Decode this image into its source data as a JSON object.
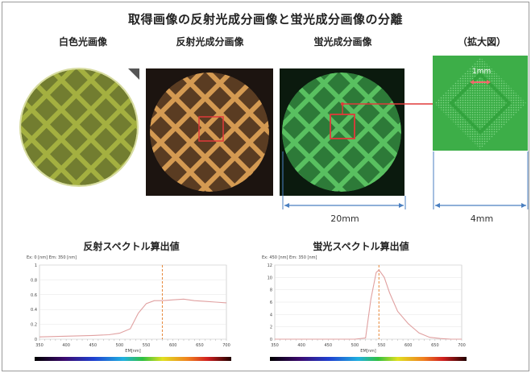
{
  "title": "取得画像の反射光成分画像と蛍光成分画像の分離",
  "panels": [
    {
      "label": "白色光画像"
    },
    {
      "label": "反射光成分画像"
    },
    {
      "label": "蛍光成分画像"
    },
    {
      "label": "（拡大図）"
    }
  ],
  "scale": {
    "width_main": "20mm",
    "width_zoom": "4mm",
    "zoom_scale": "1mm"
  },
  "chart_data": [
    {
      "type": "line",
      "title": "反射スペクトル算出値",
      "header_note": "Ex: 0 [nm] Em: 350 [nm]",
      "xlabel": "EM[nm]",
      "xlim": [
        350,
        700
      ],
      "ylim": [
        0,
        1
      ],
      "x_ticks": [
        350,
        400,
        450,
        500,
        550,
        600,
        650,
        700
      ],
      "y_ticks": [
        0,
        0.2,
        0.4,
        0.6,
        0.8,
        1
      ],
      "marker_x": 580,
      "series": [
        {
          "x": [
            350,
            400,
            450,
            480,
            500,
            520,
            535,
            550,
            565,
            580,
            600,
            620,
            640,
            660,
            680,
            700
          ],
          "y": [
            0.03,
            0.04,
            0.05,
            0.06,
            0.08,
            0.14,
            0.35,
            0.48,
            0.52,
            0.52,
            0.53,
            0.54,
            0.52,
            0.51,
            0.5,
            0.49
          ]
        }
      ]
    },
    {
      "type": "line",
      "title": "蛍光スペクトル算出値",
      "header_note": "Ex: 450 [nm] Em: 350 [nm]",
      "xlabel": "EM[nm]",
      "xlim": [
        350,
        700
      ],
      "ylim": [
        0,
        12
      ],
      "x_ticks": [
        350,
        400,
        450,
        500,
        550,
        600,
        650,
        700
      ],
      "y_ticks": [
        0,
        2,
        4,
        6,
        8,
        10,
        12
      ],
      "marker_x": 545,
      "series": [
        {
          "x": [
            350,
            400,
            450,
            500,
            520,
            530,
            540,
            545,
            555,
            565,
            580,
            600,
            620,
            640,
            660,
            680,
            700
          ],
          "y": [
            0,
            0,
            0,
            0,
            0.2,
            6.5,
            10.8,
            11.2,
            10,
            7.5,
            4.5,
            2.5,
            1.0,
            0.3,
            0.1,
            0,
            0
          ]
        }
      ]
    }
  ],
  "colors": {
    "marker_line": "#e8883a",
    "curve": "#e0a0a0",
    "highlight_box": "#e03a3a",
    "dimension": "#4a7fc1",
    "fluor": "#3eb84a",
    "reflect": "#c89050"
  }
}
